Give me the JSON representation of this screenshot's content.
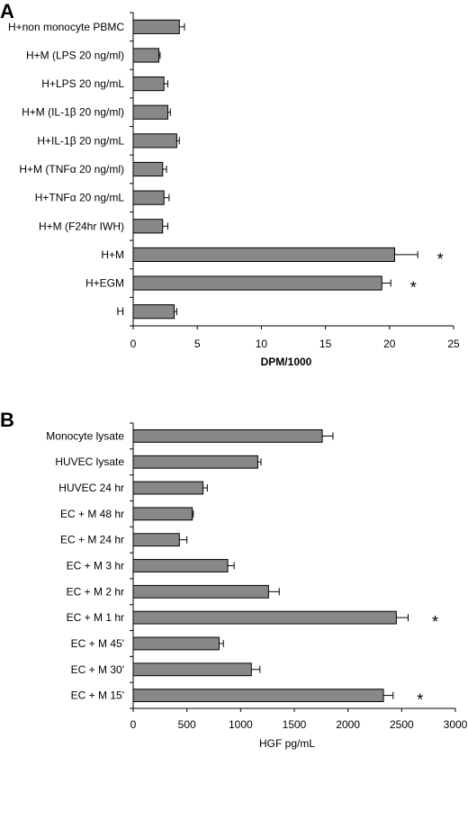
{
  "chart_data": [
    {
      "type": "bar",
      "orientation": "horizontal",
      "panel_label": "A",
      "categories": [
        "H+non monocyte PBMC",
        "H+M (LPS 20 ng/ml)",
        "H+LPS 20 ng/mL",
        "H+M (IL-1β 20 ng/ml)",
        "H+IL-1β 20 ng/mL",
        "H+M (TNFα 20 ng/ml)",
        "H+TNFα 20 ng/mL",
        "H+M (F24hr IWH)",
        "H+M",
        "H+EGM",
        "H"
      ],
      "values": [
        3.6,
        2.0,
        2.4,
        2.7,
        3.4,
        2.3,
        2.4,
        2.3,
        20.4,
        19.4,
        3.2
      ],
      "errors": [
        0.4,
        0.1,
        0.3,
        0.2,
        0.2,
        0.3,
        0.4,
        0.4,
        1.8,
        0.7,
        0.2
      ],
      "significance": [
        "",
        "",
        "",
        "",
        "",
        "",
        "",
        "",
        "*",
        "*",
        ""
      ],
      "xlabel": "DPM/1000",
      "xlim": [
        0,
        25
      ],
      "xticks": [
        0,
        5,
        10,
        15,
        20,
        25
      ]
    },
    {
      "type": "bar",
      "orientation": "horizontal",
      "panel_label": "B",
      "categories": [
        "Monocyte lysate",
        "HUVEC lysate",
        "HUVEC 24 hr",
        "EC + M 48 hr",
        "EC + M 24 hr",
        "EC + M 3 hr",
        "EC + M 2 hr",
        "EC + M 1 hr",
        "EC + M 45'",
        "EC + M 30'",
        "EC + M 15'"
      ],
      "values": [
        1760,
        1160,
        650,
        550,
        430,
        880,
        1260,
        2450,
        800,
        1100,
        2330
      ],
      "errors": [
        100,
        30,
        40,
        10,
        70,
        60,
        100,
        110,
        40,
        80,
        90
      ],
      "significance": [
        "",
        "",
        "",
        "",
        "",
        "",
        "",
        "*",
        "",
        "",
        "*"
      ],
      "xlabel": "HGF pg/mL",
      "xlim": [
        0,
        3000
      ],
      "xticks": [
        0,
        500,
        1000,
        1500,
        2000,
        2500,
        3000
      ]
    }
  ]
}
